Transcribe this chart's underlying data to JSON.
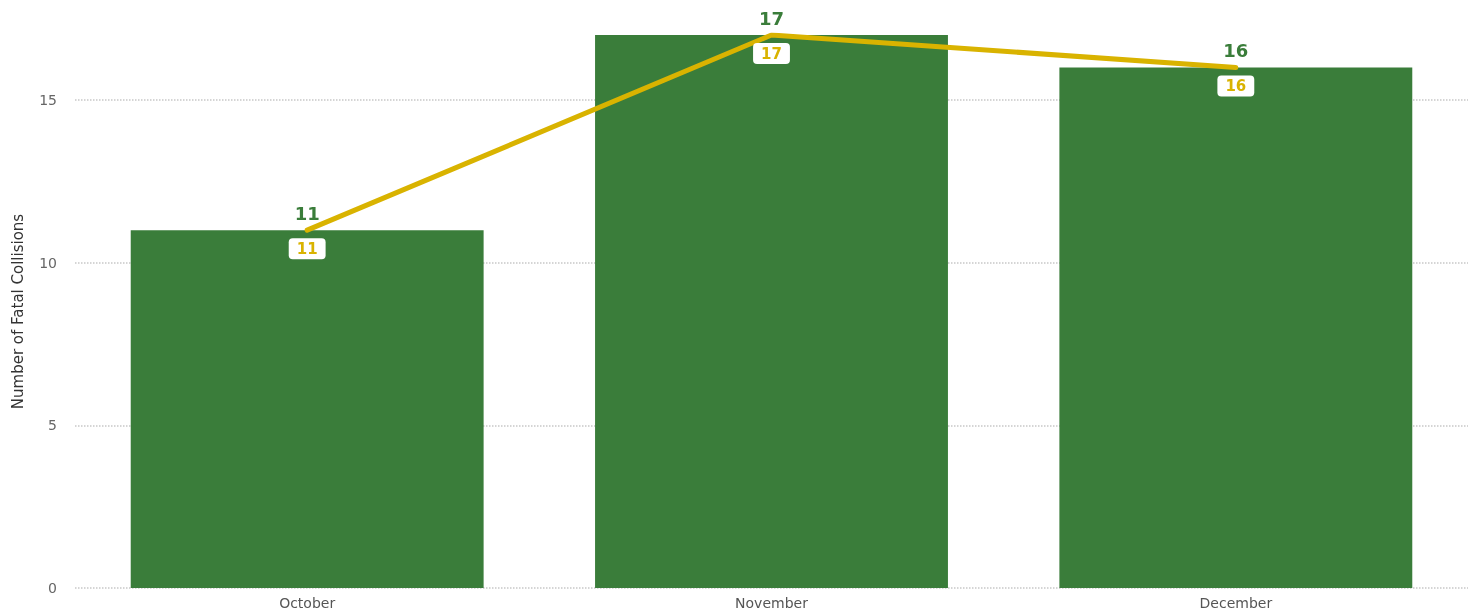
{
  "chart_data": {
    "type": "bar",
    "ylabel": "Number of Fatal Collisions",
    "categories": [
      "October",
      "November",
      "December"
    ],
    "series": [
      {
        "color": "#3a7d3a",
        "values": [
          11,
          17,
          16
        ]
      },
      {
        "type": "line",
        "color": "#d9b300",
        "values": [
          11,
          17,
          16
        ]
      }
    ],
    "ylim": [
      0,
      17
    ],
    "yticks": [
      0,
      5,
      10,
      15
    ],
    "grid": "y",
    "data_labels": true,
    "marker": "none",
    "line_style": "solid"
  }
}
